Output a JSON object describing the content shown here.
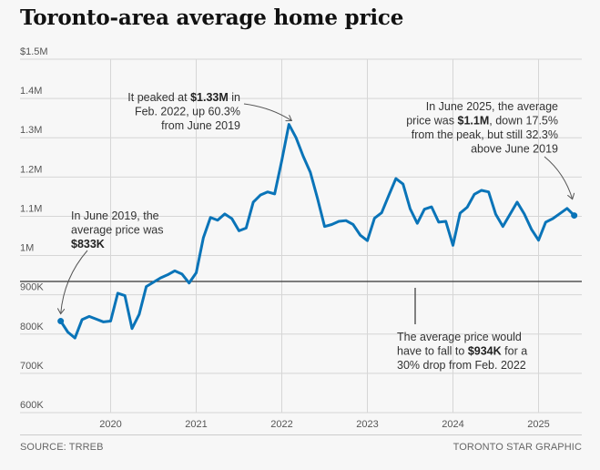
{
  "title": "Toronto-area average home price",
  "source": "SOURCE: TRREB",
  "credit": "TORONTO STAR GRAPHIC",
  "colors": {
    "line": "#0a74b8",
    "grid": "#d6d6d6",
    "reference_line": "#333333",
    "background": "#f7f7f7"
  },
  "chart_data": {
    "type": "line",
    "title": "Toronto-area average home price",
    "xlabel": "",
    "ylabel": "",
    "ylim": [
      600000,
      1500000
    ],
    "y_ticks": [
      {
        "value": 1500000,
        "label": "$1.5M"
      },
      {
        "value": 1400000,
        "label": "1.4M"
      },
      {
        "value": 1300000,
        "label": "1.3M"
      },
      {
        "value": 1200000,
        "label": "1.2M"
      },
      {
        "value": 1100000,
        "label": "1.1M"
      },
      {
        "value": 1000000,
        "label": "1M"
      },
      {
        "value": 900000,
        "label": "900K"
      },
      {
        "value": 800000,
        "label": "800K"
      },
      {
        "value": 700000,
        "label": "700K"
      },
      {
        "value": 600000,
        "label": "600K"
      }
    ],
    "x_ticks": [
      "2020",
      "2021",
      "2022",
      "2023",
      "2024",
      "2025"
    ],
    "x_start": "2019-06",
    "x_range_years": [
      2019.2,
      2025.75
    ],
    "grid": true,
    "reference_line": {
      "value": 934000,
      "label": "30% drop from peak"
    },
    "series": [
      {
        "name": "Average home price",
        "unit": "CAD",
        "start": "2019-06",
        "frequency": "monthly",
        "values": [
          833000,
          805000,
          790000,
          837000,
          845000,
          838000,
          831000,
          833000,
          904000,
          898000,
          814000,
          850000,
          921000,
          932000,
          943000,
          951000,
          961000,
          953000,
          930000,
          956000,
          1045000,
          1097000,
          1090000,
          1106000,
          1094000,
          1063000,
          1070000,
          1136000,
          1154000,
          1162000,
          1157000,
          1242000,
          1334000,
          1300000,
          1253000,
          1212000,
          1146000,
          1074000,
          1079000,
          1087000,
          1089000,
          1079000,
          1052000,
          1038000,
          1095000,
          1109000,
          1153000,
          1196000,
          1182000,
          1119000,
          1082000,
          1118000,
          1124000,
          1085000,
          1087000,
          1026000,
          1108000,
          1123000,
          1156000,
          1166000,
          1162000,
          1105000,
          1074000,
          1105000,
          1136000,
          1106000,
          1067000,
          1039000,
          1085000,
          1094000,
          1107000,
          1120000,
          1102000
        ]
      }
    ],
    "annotations": [
      {
        "id": "start",
        "lines": [
          [
            {
              "t": "In June 2019, the"
            }
          ],
          [
            {
              "t": "average price was"
            }
          ],
          [
            {
              "t": "$833K",
              "b": true
            }
          ]
        ]
      },
      {
        "id": "peak",
        "lines": [
          [
            {
              "t": "It peaked at "
            },
            {
              "t": "$1.33M",
              "b": true
            },
            {
              "t": " in"
            }
          ],
          [
            {
              "t": "Feb. 2022, up 60.3%"
            }
          ],
          [
            {
              "t": "from June 2019"
            }
          ]
        ]
      },
      {
        "id": "end",
        "lines": [
          [
            {
              "t": "In June 2025, the average"
            }
          ],
          [
            {
              "t": "price was "
            },
            {
              "t": "$1.1M",
              "b": true
            },
            {
              "t": ", down 17.5%"
            }
          ],
          [
            {
              "t": "from the peak, but still 32.3%"
            }
          ],
          [
            {
              "t": "above June 2019"
            }
          ]
        ]
      },
      {
        "id": "drop",
        "lines": [
          [
            {
              "t": "The average price would"
            }
          ],
          [
            {
              "t": "have to fall to "
            },
            {
              "t": "$934K",
              "b": true
            },
            {
              "t": " for a"
            }
          ],
          [
            {
              "t": "30% drop from Feb. 2022"
            }
          ]
        ]
      }
    ]
  }
}
